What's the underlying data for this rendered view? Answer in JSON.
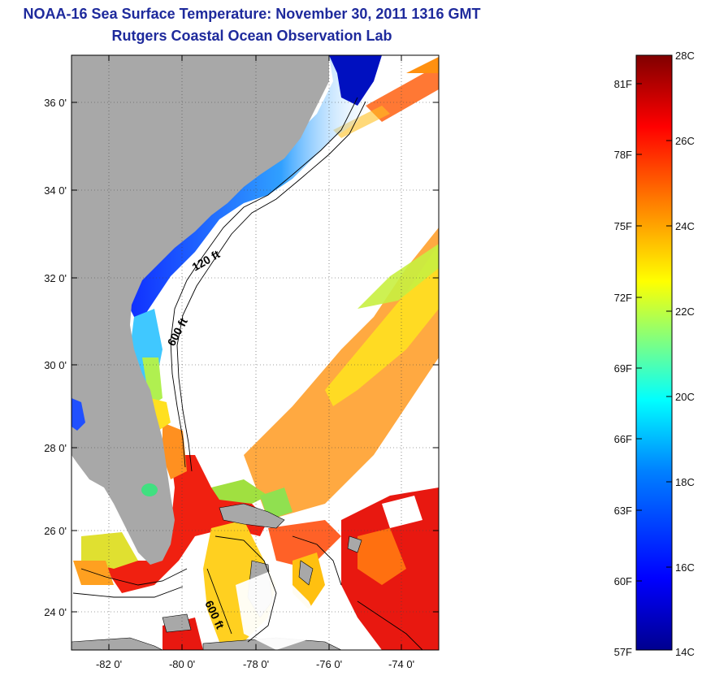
{
  "title": {
    "line1": "NOAA-16 Sea Surface Temperature:  November 30, 2011 1316 GMT",
    "line2": "Rutgers Coastal Ocean Observation Lab"
  },
  "map": {
    "lat_ticks": [
      "36 0'",
      "34 0'",
      "32 0'",
      "30 0'",
      "28 0'",
      "26 0'",
      "24 0'"
    ],
    "lon_ticks": [
      "-82 0'",
      "-80 0'",
      "-78 0'",
      "-76 0'",
      "-74 0'"
    ],
    "contour_labels": [
      "120 ft",
      "600 ft",
      "600 ft"
    ],
    "colors": {
      "land": "#a8a8a8",
      "cloud": "#ffffff"
    }
  },
  "colorbar": {
    "celsius": [
      "28C",
      "26C",
      "24C",
      "22C",
      "20C",
      "18C",
      "16C",
      "14C"
    ],
    "fahrenheit": [
      "81F",
      "78F",
      "75F",
      "72F",
      "69F",
      "66F",
      "63F",
      "60F",
      "57F"
    ],
    "gradient": [
      "#00008f",
      "#0000ff",
      "#0080ff",
      "#00ffff",
      "#80ff80",
      "#ffff00",
      "#ff8000",
      "#ff0000",
      "#800000"
    ]
  }
}
